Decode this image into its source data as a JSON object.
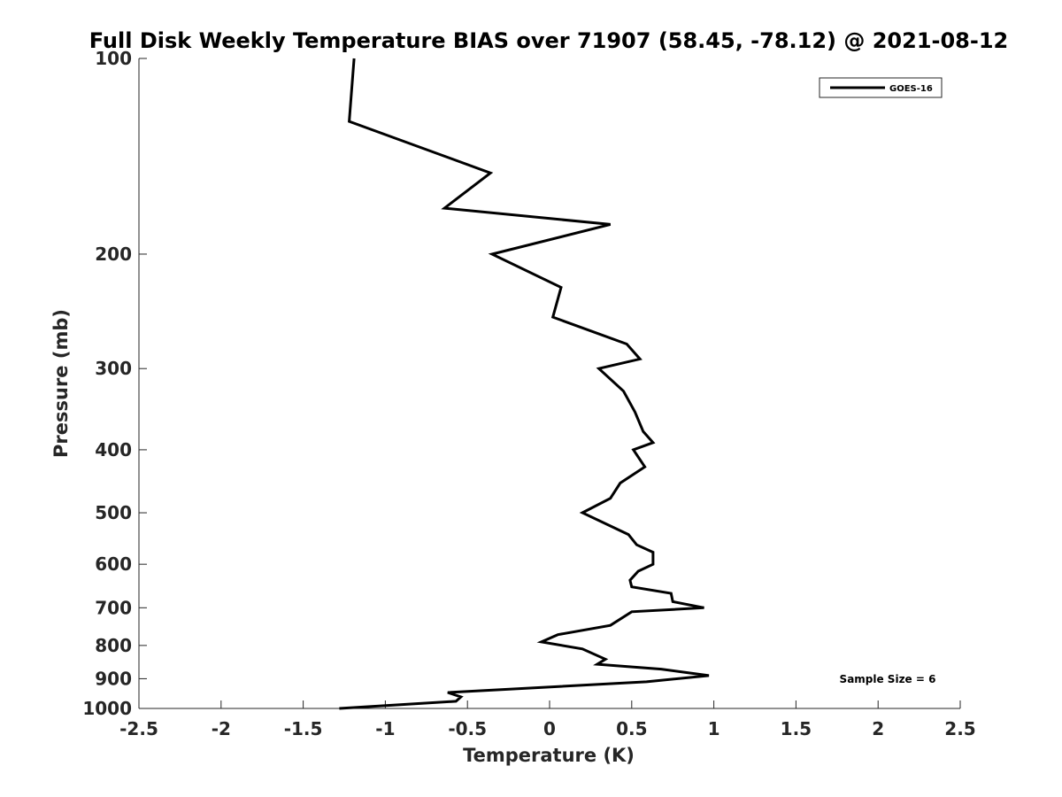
{
  "chart_data": {
    "type": "line",
    "title": "Full Disk Weekly Temperature BIAS over 71907 (58.45, -78.12) @ 2021-08-12",
    "xlabel": "Temperature (K)",
    "ylabel": "Pressure (mb)",
    "xlim": [
      -2.5,
      2.5
    ],
    "ylim": [
      100,
      1000
    ],
    "y_scale": "log",
    "y_reversed": true,
    "x_ticks": [
      -2.5,
      -2,
      -1.5,
      -1,
      -0.5,
      0,
      0.5,
      1,
      1.5,
      2,
      2.5
    ],
    "x_tick_labels": [
      "-2.5",
      "-2",
      "-1.5",
      "-1",
      "-0.5",
      "0",
      "0.5",
      "1",
      "1.5",
      "2",
      "2.5"
    ],
    "y_ticks": [
      100,
      200,
      300,
      400,
      500,
      600,
      700,
      800,
      900,
      1000
    ],
    "y_tick_labels": [
      "100",
      "200",
      "300",
      "400",
      "500",
      "600",
      "700",
      "800",
      "900",
      "1000"
    ],
    "grid": false,
    "legend_position": "top-right",
    "series": [
      {
        "name": "GOES-16",
        "color": "#000000",
        "points": [
          {
            "x": -1.19,
            "p": 100
          },
          {
            "x": -1.22,
            "p": 125
          },
          {
            "x": -0.36,
            "p": 150
          },
          {
            "x": -0.64,
            "p": 170
          },
          {
            "x": 0.37,
            "p": 180
          },
          {
            "x": -0.35,
            "p": 200
          },
          {
            "x": 0.07,
            "p": 225
          },
          {
            "x": 0.02,
            "p": 250
          },
          {
            "x": 0.47,
            "p": 275
          },
          {
            "x": 0.55,
            "p": 290
          },
          {
            "x": 0.3,
            "p": 300
          },
          {
            "x": 0.45,
            "p": 325
          },
          {
            "x": 0.52,
            "p": 350
          },
          {
            "x": 0.57,
            "p": 375
          },
          {
            "x": 0.63,
            "p": 390
          },
          {
            "x": 0.51,
            "p": 400
          },
          {
            "x": 0.58,
            "p": 425
          },
          {
            "x": 0.43,
            "p": 450
          },
          {
            "x": 0.37,
            "p": 475
          },
          {
            "x": 0.2,
            "p": 500
          },
          {
            "x": 0.48,
            "p": 540
          },
          {
            "x": 0.53,
            "p": 560
          },
          {
            "x": 0.63,
            "p": 575
          },
          {
            "x": 0.63,
            "p": 600
          },
          {
            "x": 0.54,
            "p": 615
          },
          {
            "x": 0.49,
            "p": 635
          },
          {
            "x": 0.5,
            "p": 650
          },
          {
            "x": 0.74,
            "p": 665
          },
          {
            "x": 0.75,
            "p": 685
          },
          {
            "x": 0.94,
            "p": 700
          },
          {
            "x": 0.5,
            "p": 710
          },
          {
            "x": 0.37,
            "p": 745
          },
          {
            "x": 0.05,
            "p": 770
          },
          {
            "x": -0.05,
            "p": 790
          },
          {
            "x": 0.2,
            "p": 810
          },
          {
            "x": 0.34,
            "p": 840
          },
          {
            "x": 0.29,
            "p": 855
          },
          {
            "x": 0.68,
            "p": 870
          },
          {
            "x": 0.97,
            "p": 890
          },
          {
            "x": 0.59,
            "p": 910
          },
          {
            "x": -0.62,
            "p": 945
          },
          {
            "x": -0.54,
            "p": 960
          },
          {
            "x": -0.57,
            "p": 975
          },
          {
            "x": -1.28,
            "p": 1000
          }
        ]
      }
    ],
    "annotation": "Sample Size = 6"
  }
}
